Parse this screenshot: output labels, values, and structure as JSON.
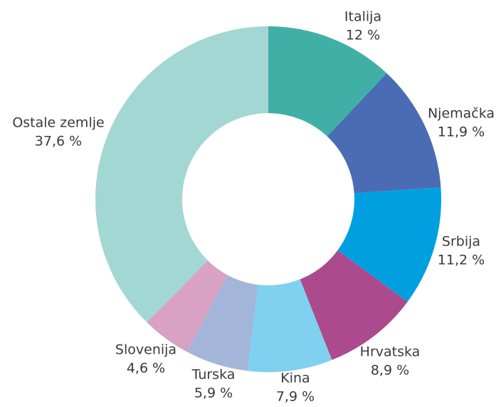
{
  "chart_data": {
    "type": "donut",
    "categories": [
      "Italija",
      "Njemačka",
      "Srbija",
      "Hrvatska",
      "Kina",
      "Turska",
      "Slovenija",
      "Ostale zemlje"
    ],
    "values": [
      12,
      11.9,
      11.2,
      8.9,
      7.9,
      5.9,
      4.6,
      37.6
    ],
    "value_labels": [
      "12 %",
      "11,9 %",
      "11,2 %",
      "8,9 %",
      "7,9 %",
      "5,9 %",
      "4,6 %",
      "37,6 %"
    ],
    "colors": [
      "#40b0a7",
      "#4a6cb4",
      "#009fe0",
      "#ac4a8e",
      "#80d0ef",
      "#a3b6da",
      "#d7a2c4",
      "#a3d7d4"
    ]
  }
}
